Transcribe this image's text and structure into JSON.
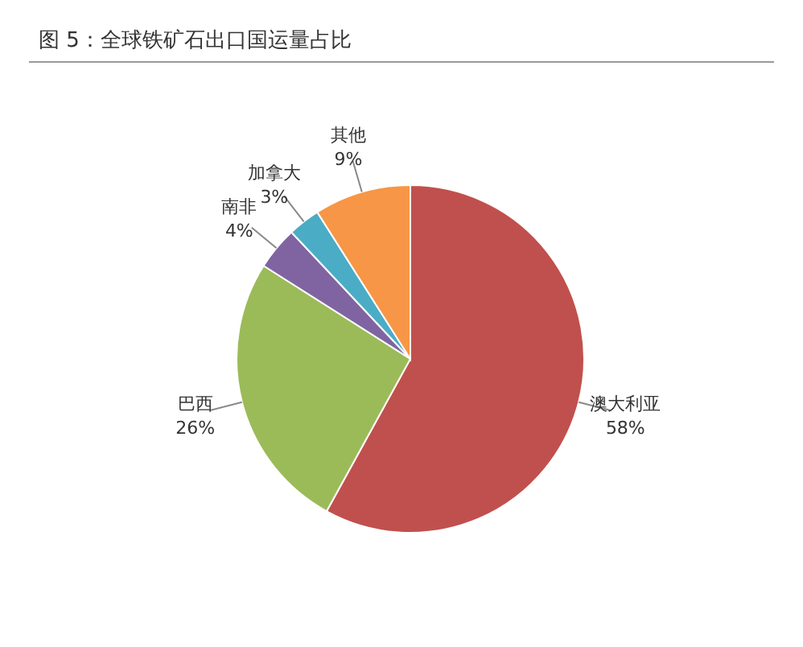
{
  "chart_data": {
    "type": "pie",
    "title": "图 5：全球铁矿石出口国运量占比",
    "categories": [
      "澳大利亚",
      "巴西",
      "南非",
      "加拿大",
      "其他"
    ],
    "values": [
      58,
      26,
      4,
      3,
      9
    ],
    "value_labels": [
      "58%",
      "26%",
      "4%",
      "3%",
      "9%"
    ],
    "colors": [
      "#c0504d",
      "#9bbb59",
      "#8064a2",
      "#4bacc6",
      "#f79646"
    ],
    "legend": false
  }
}
